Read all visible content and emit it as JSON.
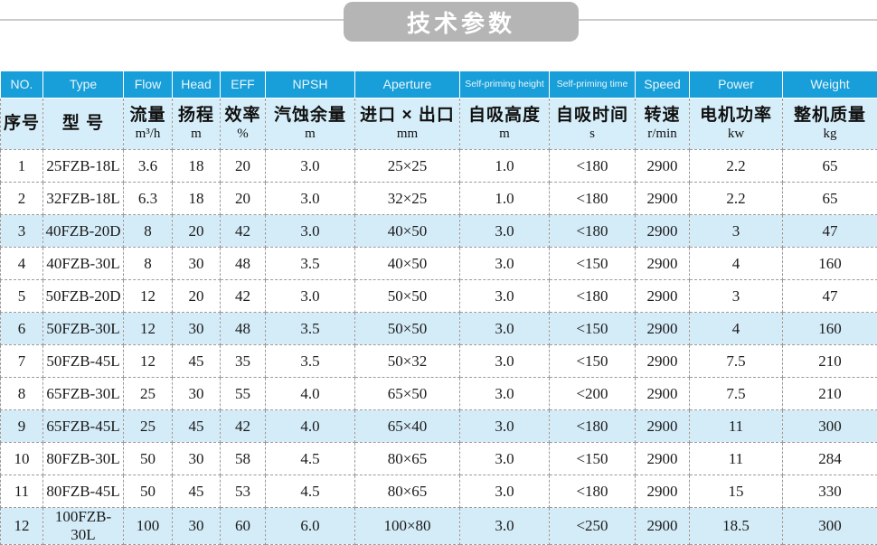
{
  "page": {
    "title": "技术参数"
  },
  "colors": {
    "header_blue": "#189ed8",
    "subheader_light_blue": "#d6eef9",
    "highlight_row_blue": "#d4ecf8",
    "title_badge_gray": "#b5b5b5"
  },
  "table": {
    "columns": [
      {
        "en": "NO.",
        "zh": "序号",
        "unit": ""
      },
      {
        "en": "Type",
        "zh": "型  号",
        "unit": ""
      },
      {
        "en": "Flow",
        "zh": "流量",
        "unit": "m³/h"
      },
      {
        "en": "Head",
        "zh": "扬程",
        "unit": "m"
      },
      {
        "en": "EFF",
        "zh": "效率",
        "unit": "%"
      },
      {
        "en": "NPSH",
        "zh": "汽蚀余量",
        "unit": "m"
      },
      {
        "en": "Aperture",
        "zh": "进口 × 出口",
        "unit": "mm"
      },
      {
        "en": "Self-priming height",
        "zh": "自吸高度",
        "unit": "m"
      },
      {
        "en": "Self-priming time",
        "zh": "自吸时间",
        "unit": "s"
      },
      {
        "en": "Speed",
        "zh": "转速",
        "unit": "r/min"
      },
      {
        "en": "Power",
        "zh": "电机功率",
        "unit": "kw"
      },
      {
        "en": "Weight",
        "zh": "整机质量",
        "unit": "kg"
      }
    ],
    "rows": [
      [
        "1",
        "25FZB-18L",
        "3.6",
        "18",
        "20",
        "3.0",
        "25×25",
        "1.0",
        "<180",
        "2900",
        "2.2",
        "65"
      ],
      [
        "2",
        "32FZB-18L",
        "6.3",
        "18",
        "20",
        "3.0",
        "32×25",
        "1.0",
        "<180",
        "2900",
        "2.2",
        "65"
      ],
      [
        "3",
        "40FZB-20D",
        "8",
        "20",
        "42",
        "3.0",
        "40×50",
        "3.0",
        "<180",
        "2900",
        "3",
        "47"
      ],
      [
        "4",
        "40FZB-30L",
        "8",
        "30",
        "48",
        "3.5",
        "40×50",
        "3.0",
        "<150",
        "2900",
        "4",
        "160"
      ],
      [
        "5",
        "50FZB-20D",
        "12",
        "20",
        "42",
        "3.0",
        "50×50",
        "3.0",
        "<180",
        "2900",
        "3",
        "47"
      ],
      [
        "6",
        "50FZB-30L",
        "12",
        "30",
        "48",
        "3.5",
        "50×50",
        "3.0",
        "<150",
        "2900",
        "4",
        "160"
      ],
      [
        "7",
        "50FZB-45L",
        "12",
        "45",
        "35",
        "3.5",
        "50×32",
        "3.0",
        "<150",
        "2900",
        "7.5",
        "210"
      ],
      [
        "8",
        "65FZB-30L",
        "25",
        "30",
        "55",
        "4.0",
        "65×50",
        "3.0",
        "<200",
        "2900",
        "7.5",
        "210"
      ],
      [
        "9",
        "65FZB-45L",
        "25",
        "45",
        "42",
        "4.0",
        "65×40",
        "3.0",
        "<180",
        "2900",
        "11",
        "300"
      ],
      [
        "10",
        "80FZB-30L",
        "50",
        "30",
        "58",
        "4.5",
        "80×65",
        "3.0",
        "<150",
        "2900",
        "11",
        "284"
      ],
      [
        "11",
        "80FZB-45L",
        "50",
        "45",
        "53",
        "4.5",
        "80×65",
        "3.0",
        "<180",
        "2900",
        "15",
        "330"
      ],
      [
        "12",
        "100FZB-30L",
        "100",
        "30",
        "60",
        "6.0",
        "100×80",
        "3.0",
        "<250",
        "2900",
        "18.5",
        "300"
      ]
    ],
    "highlight_rows": [
      3,
      6,
      9,
      12
    ]
  }
}
